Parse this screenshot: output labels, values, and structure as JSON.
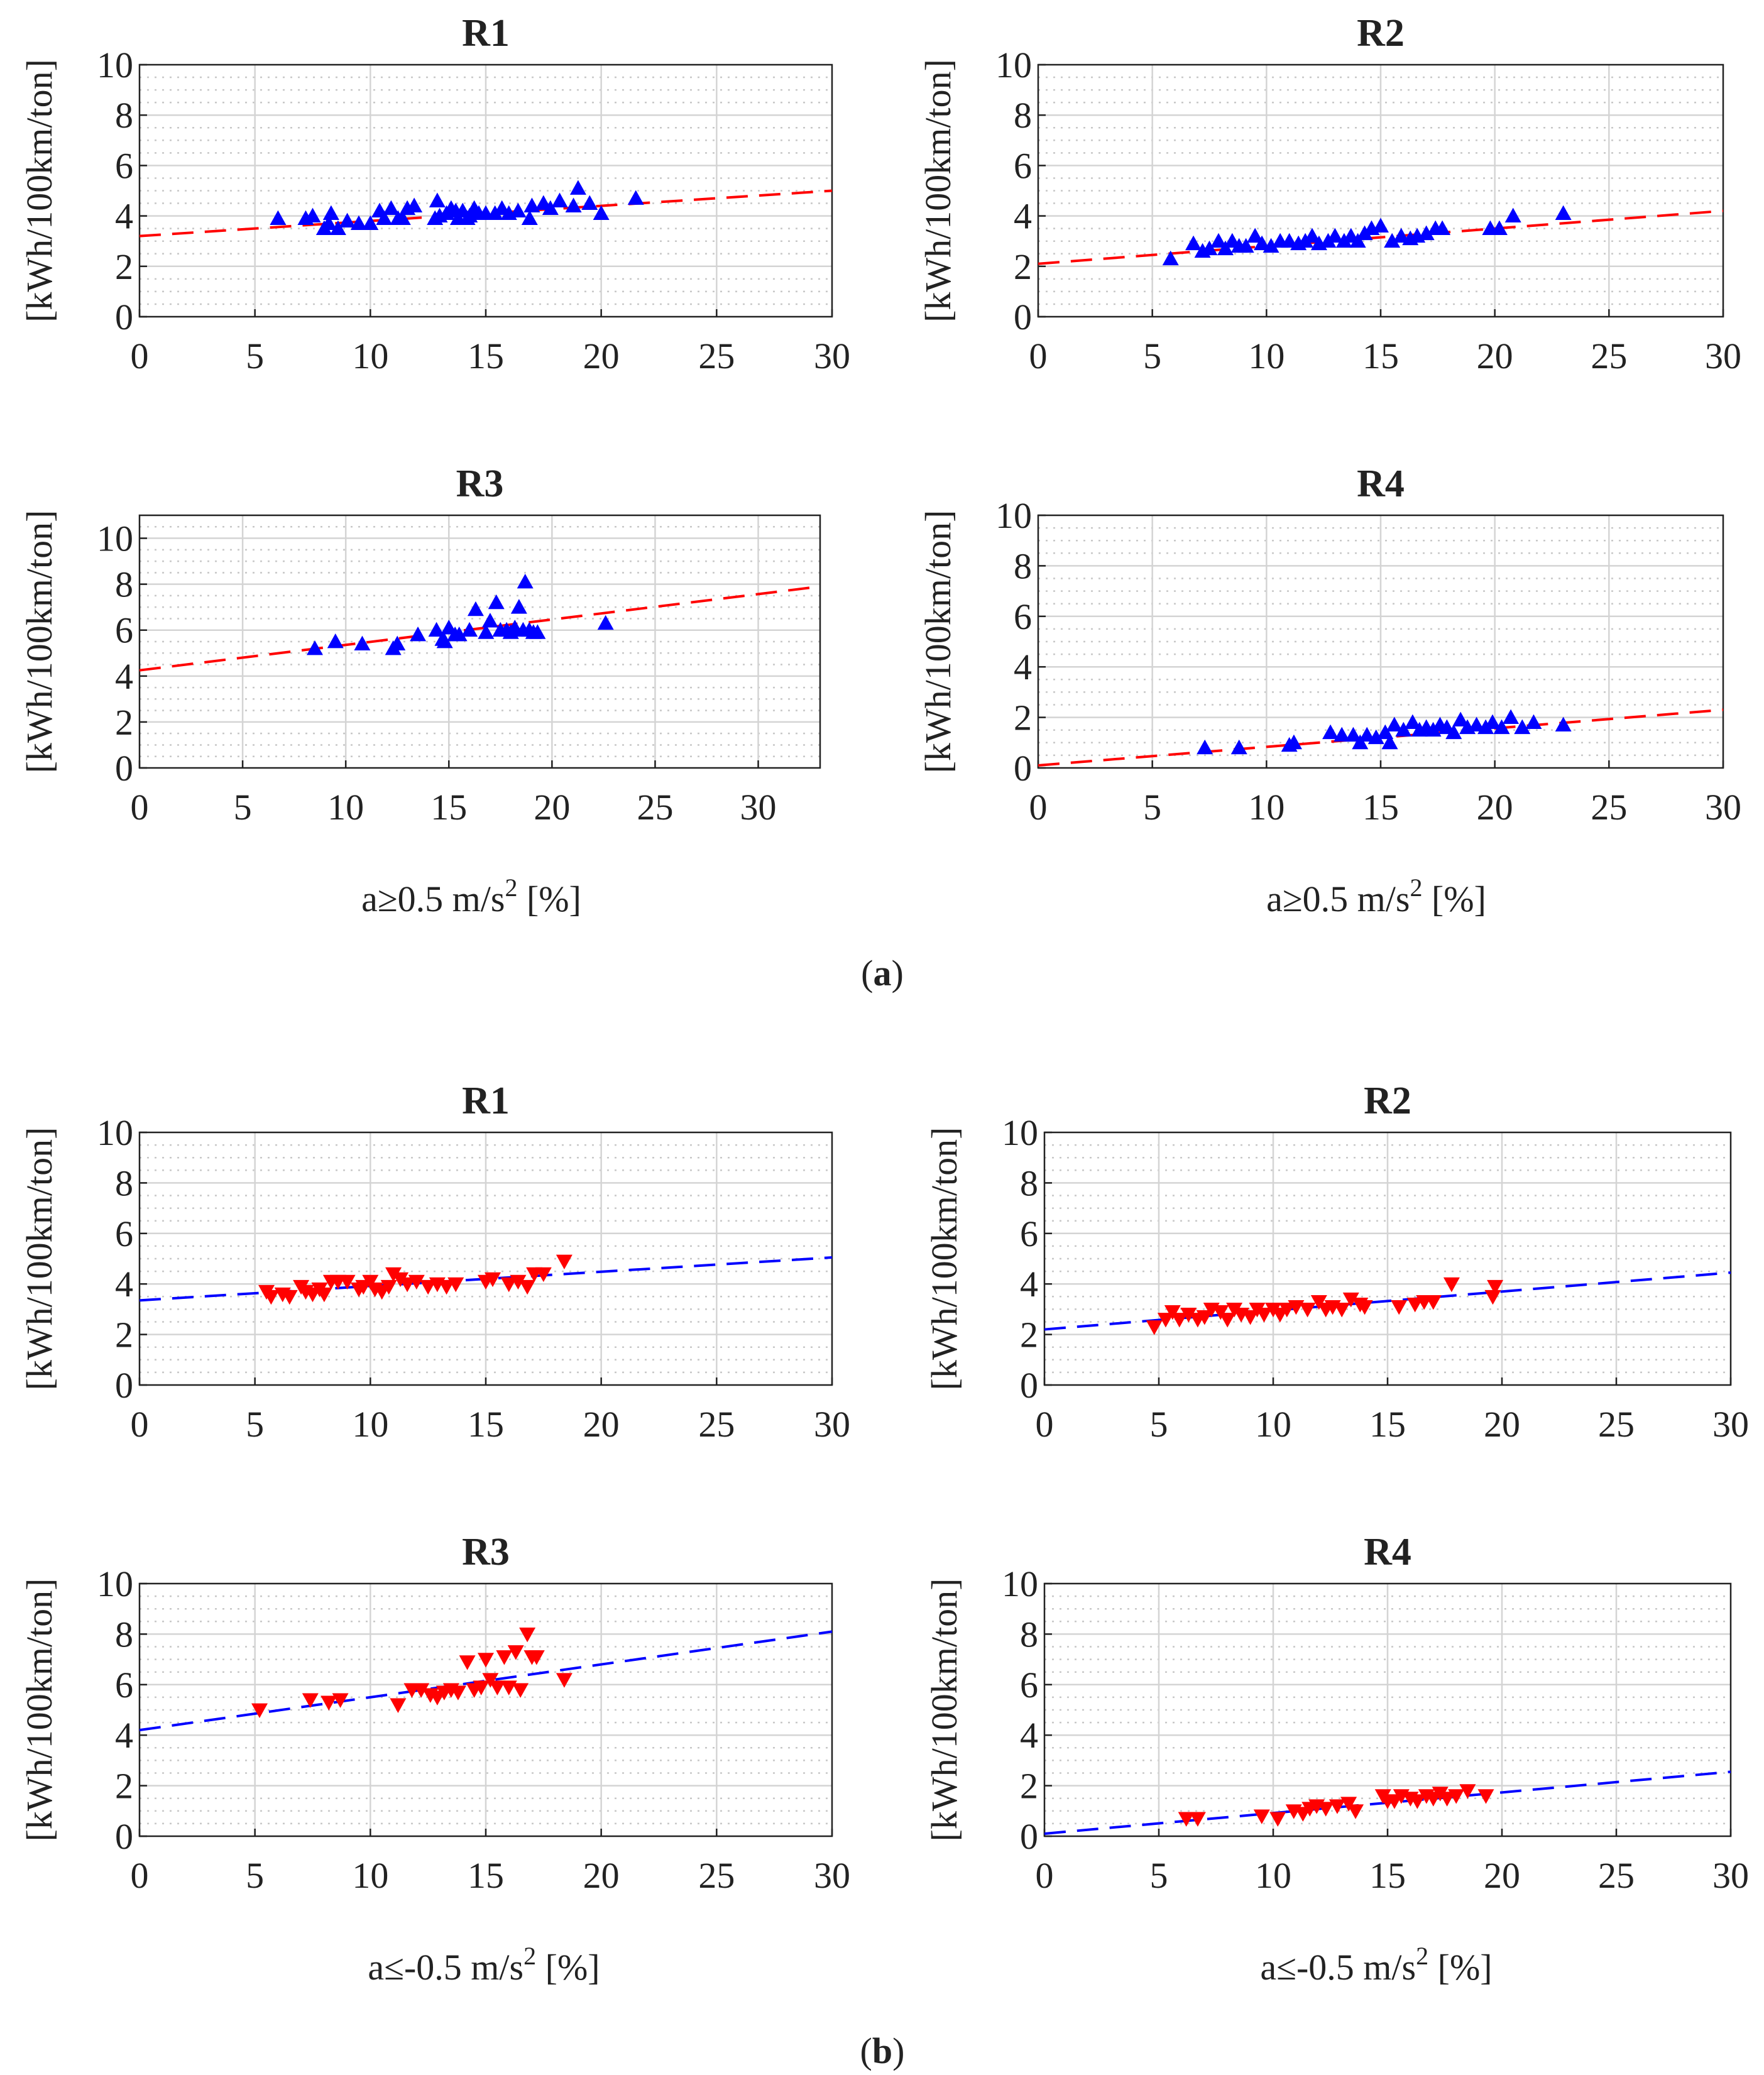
{
  "colors": {
    "up_marker": "#0000ff",
    "down_marker": "#ff0000",
    "up_fit": "#ff0000",
    "down_fit": "#0000ff",
    "grid_major": "#d4d4d4",
    "grid_minor": "#c8c8c8",
    "axes": "#222222"
  },
  "groups": [
    {
      "label": "(a)",
      "label_pre": "(",
      "label_mid": "a",
      "label_post": ")",
      "marker": "triangle-up",
      "xlabel_pre": "a≥0.5 m/s",
      "xlabel_sup": "2",
      "xlabel_post": " [%]"
    },
    {
      "label": "(b)",
      "label_pre": "(",
      "label_mid": "b",
      "label_post": ")",
      "marker": "triangle-down",
      "xlabel_pre": "a≤-0.5 m/s",
      "xlabel_sup": "2",
      "xlabel_post": " [%]"
    }
  ],
  "chart_data": [
    {
      "id": "a-R1",
      "type": "scatter",
      "title": "R1",
      "ylabel": "[kWh/100km/ton]",
      "xlabel": "",
      "xlim": [
        0,
        30
      ],
      "ylim": [
        0,
        10
      ],
      "xticks": [
        0,
        5,
        10,
        15,
        20,
        25,
        30
      ],
      "yticks": [
        0,
        2,
        4,
        6,
        8,
        10
      ],
      "grid": true,
      "marker": "triangle-up",
      "fit": {
        "x": [
          0,
          30
        ],
        "y": [
          3.2,
          5.0
        ]
      },
      "points": [
        [
          6.0,
          3.9
        ],
        [
          7.2,
          3.9
        ],
        [
          7.5,
          4.0
        ],
        [
          8.0,
          3.5
        ],
        [
          8.2,
          3.7
        ],
        [
          8.3,
          4.1
        ],
        [
          8.6,
          3.5
        ],
        [
          9.0,
          3.8
        ],
        [
          9.5,
          3.7
        ],
        [
          10.0,
          3.7
        ],
        [
          10.4,
          4.2
        ],
        [
          10.6,
          3.9
        ],
        [
          10.9,
          4.3
        ],
        [
          11.2,
          3.9
        ],
        [
          11.4,
          3.9
        ],
        [
          11.6,
          4.3
        ],
        [
          11.9,
          4.4
        ],
        [
          12.8,
          3.9
        ],
        [
          12.9,
          4.6
        ],
        [
          13.0,
          4.0
        ],
        [
          13.3,
          4.1
        ],
        [
          13.5,
          4.3
        ],
        [
          13.7,
          4.2
        ],
        [
          13.8,
          3.9
        ],
        [
          14.0,
          4.2
        ],
        [
          14.2,
          3.9
        ],
        [
          14.3,
          4.0
        ],
        [
          14.5,
          4.3
        ],
        [
          14.7,
          4.1
        ],
        [
          15.0,
          4.1
        ],
        [
          15.4,
          4.1
        ],
        [
          15.7,
          4.3
        ],
        [
          16.0,
          4.1
        ],
        [
          16.4,
          4.2
        ],
        [
          16.9,
          3.9
        ],
        [
          17.0,
          4.4
        ],
        [
          17.5,
          4.5
        ],
        [
          17.8,
          4.3
        ],
        [
          18.2,
          4.6
        ],
        [
          18.8,
          4.4
        ],
        [
          19.0,
          5.1
        ],
        [
          19.5,
          4.5
        ],
        [
          20.0,
          4.1
        ],
        [
          21.5,
          4.7
        ]
      ]
    },
    {
      "id": "a-R2",
      "type": "scatter",
      "title": "R2",
      "ylabel": "[kWh/100km/ton]",
      "xlabel": "",
      "xlim": [
        0,
        30
      ],
      "ylim": [
        0,
        10
      ],
      "xticks": [
        0,
        5,
        10,
        15,
        20,
        25,
        30
      ],
      "yticks": [
        0,
        2,
        4,
        6,
        8,
        10
      ],
      "grid": true,
      "marker": "triangle-up",
      "fit": {
        "x": [
          0,
          30
        ],
        "y": [
          2.1,
          4.2
        ]
      },
      "points": [
        [
          5.8,
          2.3
        ],
        [
          6.8,
          2.9
        ],
        [
          7.2,
          2.6
        ],
        [
          7.5,
          2.7
        ],
        [
          7.9,
          3.0
        ],
        [
          8.2,
          2.7
        ],
        [
          8.5,
          3.0
        ],
        [
          8.8,
          2.8
        ],
        [
          9.1,
          2.8
        ],
        [
          9.5,
          3.2
        ],
        [
          9.8,
          2.9
        ],
        [
          10.2,
          2.8
        ],
        [
          10.6,
          3.0
        ],
        [
          11.0,
          3.0
        ],
        [
          11.4,
          2.9
        ],
        [
          11.7,
          3.0
        ],
        [
          12.0,
          3.2
        ],
        [
          12.3,
          2.9
        ],
        [
          12.7,
          3.0
        ],
        [
          13.0,
          3.2
        ],
        [
          13.4,
          3.0
        ],
        [
          13.7,
          3.2
        ],
        [
          14.0,
          3.0
        ],
        [
          14.3,
          3.3
        ],
        [
          14.6,
          3.5
        ],
        [
          15.0,
          3.6
        ],
        [
          15.5,
          3.0
        ],
        [
          15.9,
          3.2
        ],
        [
          16.3,
          3.1
        ],
        [
          16.6,
          3.2
        ],
        [
          17.0,
          3.3
        ],
        [
          17.4,
          3.5
        ],
        [
          17.7,
          3.5
        ],
        [
          19.8,
          3.5
        ],
        [
          20.2,
          3.5
        ],
        [
          20.8,
          4.0
        ],
        [
          23.0,
          4.1
        ]
      ]
    },
    {
      "id": "a-R3",
      "type": "scatter",
      "title": "R3",
      "ylabel": "[kWh/100km/ton]",
      "xlabel": "",
      "xlim": [
        0,
        33
      ],
      "ylim": [
        0,
        11
      ],
      "xticks": [
        0,
        5,
        10,
        15,
        20,
        25,
        30
      ],
      "yticks": [
        0,
        2,
        4,
        6,
        8,
        10
      ],
      "grid": true,
      "marker": "triangle-up",
      "fit": {
        "x": [
          0,
          33
        ],
        "y": [
          4.25,
          7.9
        ]
      },
      "points": [
        [
          8.5,
          5.2
        ],
        [
          9.5,
          5.5
        ],
        [
          10.8,
          5.4
        ],
        [
          12.3,
          5.2
        ],
        [
          12.5,
          5.4
        ],
        [
          13.5,
          5.8
        ],
        [
          14.4,
          6.0
        ],
        [
          14.7,
          5.6
        ],
        [
          14.8,
          5.5
        ],
        [
          15.0,
          6.1
        ],
        [
          15.3,
          5.8
        ],
        [
          15.5,
          5.8
        ],
        [
          16.0,
          6.0
        ],
        [
          16.3,
          6.9
        ],
        [
          16.8,
          5.9
        ],
        [
          17.0,
          6.4
        ],
        [
          17.3,
          7.2
        ],
        [
          17.5,
          6.0
        ],
        [
          17.8,
          6.0
        ],
        [
          18.0,
          5.9
        ],
        [
          18.2,
          6.1
        ],
        [
          18.4,
          7.0
        ],
        [
          18.6,
          6.0
        ],
        [
          18.7,
          8.1
        ],
        [
          18.9,
          6.0
        ],
        [
          19.1,
          5.9
        ],
        [
          19.3,
          5.9
        ],
        [
          22.6,
          6.3
        ]
      ]
    },
    {
      "id": "a-R4",
      "type": "scatter",
      "title": "R4",
      "ylabel": "[kWh/100km/ton]",
      "xlabel": "",
      "xlim": [
        0,
        30
      ],
      "ylim": [
        0,
        10
      ],
      "xticks": [
        0,
        5,
        10,
        15,
        20,
        25,
        30
      ],
      "yticks": [
        0,
        2,
        4,
        6,
        8,
        10
      ],
      "grid": true,
      "marker": "triangle-up",
      "fit": {
        "x": [
          0,
          30
        ],
        "y": [
          0.1,
          2.3
        ]
      },
      "points": [
        [
          7.3,
          0.8
        ],
        [
          8.8,
          0.8
        ],
        [
          11.0,
          0.9
        ],
        [
          11.2,
          1.0
        ],
        [
          12.8,
          1.4
        ],
        [
          13.3,
          1.3
        ],
        [
          13.8,
          1.3
        ],
        [
          14.1,
          1.0
        ],
        [
          14.4,
          1.3
        ],
        [
          14.8,
          1.2
        ],
        [
          15.2,
          1.4
        ],
        [
          15.4,
          1.0
        ],
        [
          15.6,
          1.7
        ],
        [
          16.0,
          1.5
        ],
        [
          16.4,
          1.8
        ],
        [
          16.7,
          1.5
        ],
        [
          17.0,
          1.6
        ],
        [
          17.3,
          1.5
        ],
        [
          17.6,
          1.7
        ],
        [
          17.9,
          1.6
        ],
        [
          18.2,
          1.4
        ],
        [
          18.5,
          1.9
        ],
        [
          18.8,
          1.6
        ],
        [
          19.2,
          1.7
        ],
        [
          19.6,
          1.6
        ],
        [
          19.9,
          1.8
        ],
        [
          20.3,
          1.6
        ],
        [
          20.7,
          2.0
        ],
        [
          21.2,
          1.6
        ],
        [
          21.7,
          1.8
        ],
        [
          23.0,
          1.7
        ]
      ]
    },
    {
      "id": "b-R1",
      "type": "scatter",
      "title": "R1",
      "ylabel": "[kWh/100km/ton]",
      "xlabel": "",
      "xlim": [
        0,
        30
      ],
      "ylim": [
        0,
        10
      ],
      "xticks": [
        0,
        5,
        10,
        15,
        20,
        25,
        30
      ],
      "yticks": [
        0,
        2,
        4,
        6,
        8,
        10
      ],
      "grid": true,
      "marker": "triangle-down",
      "fit": {
        "x": [
          0,
          30
        ],
        "y": [
          3.35,
          5.05
        ]
      },
      "points": [
        [
          5.5,
          3.7
        ],
        [
          5.7,
          3.5
        ],
        [
          6.2,
          3.6
        ],
        [
          6.5,
          3.5
        ],
        [
          7.0,
          3.9
        ],
        [
          7.2,
          3.7
        ],
        [
          7.5,
          3.6
        ],
        [
          7.8,
          3.8
        ],
        [
          8.0,
          3.6
        ],
        [
          8.3,
          4.1
        ],
        [
          8.6,
          4.1
        ],
        [
          9.0,
          4.1
        ],
        [
          9.5,
          3.8
        ],
        [
          9.7,
          3.9
        ],
        [
          10.0,
          4.1
        ],
        [
          10.2,
          3.8
        ],
        [
          10.5,
          3.7
        ],
        [
          10.8,
          3.9
        ],
        [
          11.0,
          4.4
        ],
        [
          11.3,
          4.2
        ],
        [
          11.6,
          4.0
        ],
        [
          12.0,
          4.1
        ],
        [
          12.5,
          3.9
        ],
        [
          12.9,
          4.0
        ],
        [
          13.3,
          3.9
        ],
        [
          13.7,
          4.0
        ],
        [
          15.0,
          4.1
        ],
        [
          15.3,
          4.2
        ],
        [
          16.0,
          4.0
        ],
        [
          16.4,
          4.1
        ],
        [
          16.8,
          3.9
        ],
        [
          17.1,
          4.4
        ],
        [
          17.5,
          4.4
        ],
        [
          18.4,
          4.9
        ]
      ]
    },
    {
      "id": "b-R2",
      "type": "scatter",
      "title": "R2",
      "ylabel": "[kWh/100km/ton]",
      "xlabel": "",
      "xlim": [
        0,
        30
      ],
      "ylim": [
        0,
        10
      ],
      "xticks": [
        0,
        5,
        10,
        15,
        20,
        25,
        30
      ],
      "yticks": [
        0,
        2,
        4,
        6,
        8,
        10
      ],
      "grid": true,
      "marker": "triangle-down",
      "fit": {
        "x": [
          0,
          30
        ],
        "y": [
          2.2,
          4.45
        ]
      },
      "points": [
        [
          4.8,
          2.3
        ],
        [
          5.3,
          2.6
        ],
        [
          5.6,
          2.9
        ],
        [
          5.9,
          2.6
        ],
        [
          6.3,
          2.8
        ],
        [
          6.7,
          2.6
        ],
        [
          7.0,
          2.7
        ],
        [
          7.3,
          3.0
        ],
        [
          7.7,
          2.9
        ],
        [
          8.0,
          2.6
        ],
        [
          8.3,
          3.0
        ],
        [
          8.6,
          2.8
        ],
        [
          9.0,
          2.7
        ],
        [
          9.3,
          3.0
        ],
        [
          9.6,
          2.8
        ],
        [
          10.0,
          3.0
        ],
        [
          10.3,
          2.8
        ],
        [
          10.6,
          3.0
        ],
        [
          11.0,
          3.1
        ],
        [
          11.5,
          3.0
        ],
        [
          12.0,
          3.3
        ],
        [
          12.3,
          3.0
        ],
        [
          12.6,
          3.1
        ],
        [
          13.0,
          3.0
        ],
        [
          13.4,
          3.4
        ],
        [
          13.8,
          3.2
        ],
        [
          14.0,
          3.1
        ],
        [
          15.5,
          3.1
        ],
        [
          16.2,
          3.2
        ],
        [
          16.6,
          3.3
        ],
        [
          17.0,
          3.3
        ],
        [
          17.8,
          4.0
        ],
        [
          19.6,
          3.5
        ],
        [
          19.7,
          3.9
        ]
      ]
    },
    {
      "id": "b-R3",
      "type": "scatter",
      "title": "R3",
      "ylabel": "[kWh/100km/ton]",
      "xlabel": "",
      "xlim": [
        0,
        30
      ],
      "ylim": [
        0,
        10
      ],
      "xticks": [
        0,
        5,
        10,
        15,
        20,
        25,
        30
      ],
      "yticks": [
        0,
        2,
        4,
        6,
        8,
        10
      ],
      "grid": true,
      "marker": "triangle-down",
      "fit": {
        "x": [
          0,
          30
        ],
        "y": [
          4.2,
          8.1
        ]
      },
      "points": [
        [
          5.2,
          5.0
        ],
        [
          7.4,
          5.4
        ],
        [
          8.2,
          5.3
        ],
        [
          8.7,
          5.4
        ],
        [
          11.2,
          5.2
        ],
        [
          11.8,
          5.8
        ],
        [
          12.2,
          5.8
        ],
        [
          12.6,
          5.6
        ],
        [
          12.9,
          5.5
        ],
        [
          13.2,
          5.7
        ],
        [
          13.5,
          5.8
        ],
        [
          13.8,
          5.7
        ],
        [
          14.2,
          6.9
        ],
        [
          14.5,
          5.8
        ],
        [
          14.8,
          5.9
        ],
        [
          15.0,
          7.0
        ],
        [
          15.2,
          6.2
        ],
        [
          15.5,
          5.9
        ],
        [
          15.8,
          7.1
        ],
        [
          16.0,
          5.9
        ],
        [
          16.3,
          7.3
        ],
        [
          16.5,
          5.8
        ],
        [
          16.8,
          8.0
        ],
        [
          17.0,
          7.1
        ],
        [
          17.2,
          7.1
        ],
        [
          18.4,
          6.2
        ]
      ]
    },
    {
      "id": "b-R4",
      "type": "scatter",
      "title": "R4",
      "ylabel": "[kWh/100km/ton]",
      "xlabel": "",
      "xlim": [
        0,
        30
      ],
      "ylim": [
        0,
        10
      ],
      "xticks": [
        0,
        5,
        10,
        15,
        20,
        25,
        30
      ],
      "yticks": [
        0,
        2,
        4,
        6,
        8,
        10
      ],
      "grid": true,
      "marker": "triangle-down",
      "fit": {
        "x": [
          0,
          30
        ],
        "y": [
          0.1,
          2.55
        ]
      },
      "points": [
        [
          6.2,
          0.7
        ],
        [
          6.7,
          0.7
        ],
        [
          9.5,
          0.8
        ],
        [
          10.2,
          0.7
        ],
        [
          10.9,
          1.0
        ],
        [
          11.3,
          0.9
        ],
        [
          11.6,
          1.1
        ],
        [
          11.9,
          1.2
        ],
        [
          12.3,
          1.1
        ],
        [
          12.8,
          1.2
        ],
        [
          13.3,
          1.3
        ],
        [
          13.6,
          1.0
        ],
        [
          14.8,
          1.6
        ],
        [
          15.0,
          1.4
        ],
        [
          15.3,
          1.4
        ],
        [
          15.6,
          1.6
        ],
        [
          16.0,
          1.5
        ],
        [
          16.3,
          1.4
        ],
        [
          16.7,
          1.6
        ],
        [
          17.0,
          1.5
        ],
        [
          17.3,
          1.7
        ],
        [
          17.6,
          1.5
        ],
        [
          18.0,
          1.6
        ],
        [
          18.5,
          1.8
        ],
        [
          19.3,
          1.6
        ]
      ]
    }
  ]
}
